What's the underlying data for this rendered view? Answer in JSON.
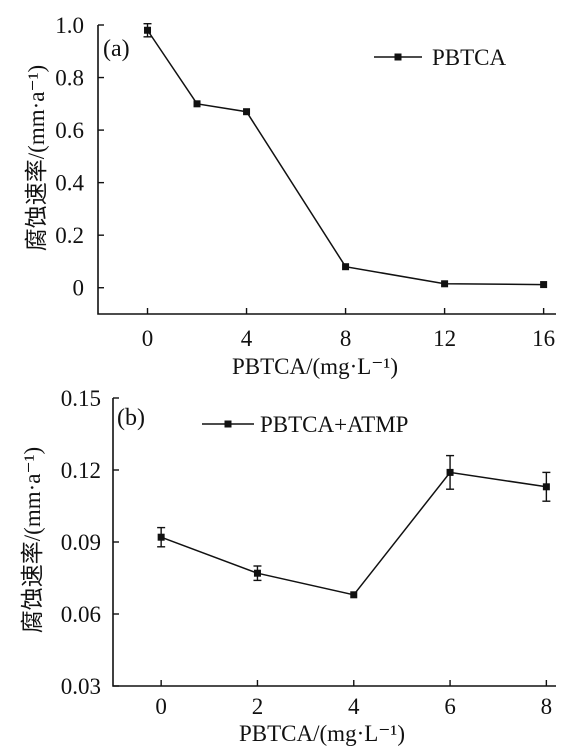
{
  "chart_data": [
    {
      "type": "line",
      "panel_label": "(a)",
      "xlabel": "PBTCA/(mg·L⁻¹)",
      "ylabel": "腐蚀速率/(mm·a⁻¹)",
      "x": [
        0,
        2,
        4,
        8,
        12,
        16
      ],
      "xticks": [
        0,
        4,
        8,
        12,
        16
      ],
      "xtick_labels": [
        "0",
        "4",
        "8",
        "12",
        "16"
      ],
      "xlim": [
        -2,
        16.5
      ],
      "ylim": [
        -0.1,
        1.0
      ],
      "yticks": [
        0,
        0.2,
        0.4,
        0.6,
        0.8,
        1.0
      ],
      "ytick_labels": [
        "0",
        "0.2",
        "0.4",
        "0.6",
        "0.8",
        "1.0"
      ],
      "series": [
        {
          "name": "PBTCA",
          "values": [
            0.98,
            0.7,
            0.67,
            0.08,
            0.015,
            0.012
          ],
          "errors": [
            0.025,
            0.0,
            0.0,
            0.0,
            0.0,
            0.0
          ]
        }
      ],
      "legend_position": "top-right",
      "grid": false
    },
    {
      "type": "line",
      "panel_label": "(b)",
      "xlabel": "PBTCA/(mg·L⁻¹)",
      "ylabel": "腐蚀速率/(mm·a⁻¹)",
      "x": [
        0,
        2,
        4,
        6,
        8
      ],
      "xticks": [
        0,
        2,
        4,
        6,
        8
      ],
      "xtick_labels": [
        "0",
        "2",
        "4",
        "6",
        "8"
      ],
      "xlim": [
        -1.0,
        8.2
      ],
      "ylim": [
        0.03,
        0.15
      ],
      "yticks": [
        0.03,
        0.06,
        0.09,
        0.12,
        0.15
      ],
      "ytick_labels": [
        "0.03",
        "0.06",
        "0.09",
        "0.12",
        "0.15"
      ],
      "series": [
        {
          "name": "PBTCA+ATMP",
          "values": [
            0.092,
            0.077,
            0.068,
            0.119,
            0.113
          ],
          "errors": [
            0.004,
            0.003,
            0.0,
            0.007,
            0.006
          ]
        }
      ],
      "legend_position": "top-center",
      "grid": false
    }
  ]
}
